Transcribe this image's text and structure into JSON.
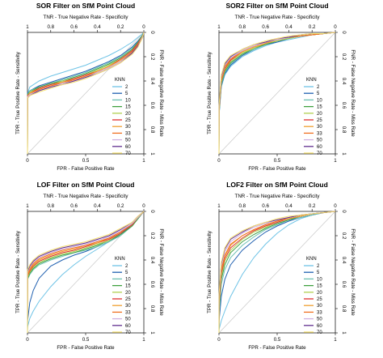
{
  "chart_data": [
    {
      "type": "line",
      "title": "SOR Filter on SfM Point Cloud",
      "xlabel": "FPR - False Positive Rate",
      "ylabel": "TPR - True Positive Rate - Sensitivity",
      "top_label": "TNR - True Negative Rate - Specificity",
      "right_label": "FNR - False Negative Rate - Miss Rate",
      "xlim": [
        0,
        1
      ],
      "ylim": [
        0,
        1
      ],
      "x_ticks": [
        "0",
        "0.5",
        "1"
      ],
      "top_ticks": [
        "1",
        "0.8",
        "0.6",
        "0.4",
        "0.2",
        "0"
      ],
      "right_ticks": [
        "0",
        "0.2",
        "0.4",
        "0.6",
        "0.8",
        "1"
      ],
      "legend_title": "KNN",
      "legend_position": "right",
      "series_x": [
        0,
        0.001,
        0.02,
        0.1,
        0.2,
        0.3,
        0.4,
        0.5,
        0.6,
        0.7,
        0.8,
        0.9,
        0.95,
        0.99,
        1
      ],
      "series": [
        {
          "name": "2",
          "color": "#6ec3e6",
          "values": [
            0,
            0.5,
            0.55,
            0.6,
            0.64,
            0.67,
            0.7,
            0.73,
            0.77,
            0.81,
            0.86,
            0.92,
            0.96,
            0.99,
            1
          ]
        },
        {
          "name": "5",
          "color": "#2060b0",
          "values": [
            0,
            0.5,
            0.52,
            0.56,
            0.59,
            0.62,
            0.65,
            0.68,
            0.72,
            0.76,
            0.81,
            0.88,
            0.93,
            0.98,
            1
          ]
        },
        {
          "name": "10",
          "color": "#6cc0b0",
          "values": [
            0,
            0.49,
            0.52,
            0.55,
            0.58,
            0.61,
            0.64,
            0.67,
            0.71,
            0.75,
            0.8,
            0.87,
            0.92,
            0.98,
            1
          ]
        },
        {
          "name": "15",
          "color": "#40a040",
          "values": [
            0,
            0.49,
            0.51,
            0.55,
            0.58,
            0.6,
            0.63,
            0.66,
            0.7,
            0.74,
            0.79,
            0.86,
            0.92,
            0.98,
            1
          ]
        },
        {
          "name": "20",
          "color": "#b0d050",
          "values": [
            0,
            0.48,
            0.51,
            0.54,
            0.57,
            0.6,
            0.62,
            0.65,
            0.69,
            0.73,
            0.78,
            0.85,
            0.91,
            0.97,
            1
          ]
        },
        {
          "name": "25",
          "color": "#e03030",
          "values": [
            0,
            0.48,
            0.5,
            0.54,
            0.57,
            0.59,
            0.62,
            0.65,
            0.68,
            0.72,
            0.78,
            0.85,
            0.91,
            0.97,
            1
          ]
        },
        {
          "name": "30",
          "color": "#f0a030",
          "values": [
            0,
            0.47,
            0.5,
            0.53,
            0.56,
            0.59,
            0.61,
            0.64,
            0.68,
            0.72,
            0.77,
            0.84,
            0.9,
            0.97,
            1
          ]
        },
        {
          "name": "33",
          "color": "#f07020",
          "values": [
            0,
            0.47,
            0.49,
            0.53,
            0.56,
            0.58,
            0.61,
            0.64,
            0.67,
            0.71,
            0.76,
            0.84,
            0.9,
            0.97,
            1
          ]
        },
        {
          "name": "50",
          "color": "#d0b0e0",
          "values": [
            0,
            0.47,
            0.49,
            0.52,
            0.55,
            0.58,
            0.6,
            0.63,
            0.67,
            0.71,
            0.76,
            0.83,
            0.89,
            0.97,
            1
          ]
        },
        {
          "name": "60",
          "color": "#603090",
          "values": [
            0,
            0.46,
            0.48,
            0.52,
            0.55,
            0.57,
            0.6,
            0.63,
            0.66,
            0.7,
            0.75,
            0.83,
            0.89,
            0.96,
            1
          ]
        },
        {
          "name": "70",
          "color": "#f5e070",
          "values": [
            0,
            0.46,
            0.48,
            0.51,
            0.54,
            0.57,
            0.59,
            0.62,
            0.66,
            0.7,
            0.75,
            0.82,
            0.88,
            0.96,
            1
          ]
        }
      ]
    },
    {
      "type": "line",
      "title": "SOR2 Filter on SfM Point Cloud",
      "xlabel": "FPR - False Positive Rate",
      "ylabel": "TPR - True Positive Rate - Sensitivity",
      "top_label": "TNR - True Negative Rate - Specificity",
      "right_label": "FNR - False Negative Rate - Miss Rate",
      "xlim": [
        0,
        1
      ],
      "ylim": [
        0,
        1
      ],
      "x_ticks": [
        "0",
        "0.5",
        "1"
      ],
      "top_ticks": [
        "1",
        "0.8",
        "0.6",
        "0.4",
        "0.2",
        "0"
      ],
      "right_ticks": [
        "0",
        "0.2",
        "0.4",
        "0.6",
        "0.8",
        "1"
      ],
      "legend_title": "KNN",
      "legend_position": "right",
      "series_x": [
        0,
        0.001,
        0.02,
        0.05,
        0.1,
        0.2,
        0.3,
        0.4,
        0.5,
        0.6,
        0.7,
        0.8,
        0.9,
        1
      ],
      "series": [
        {
          "name": "2",
          "color": "#6ec3e6",
          "values": [
            0,
            0.32,
            0.55,
            0.65,
            0.72,
            0.8,
            0.85,
            0.89,
            0.92,
            0.94,
            0.96,
            0.98,
            0.99,
            1
          ]
        },
        {
          "name": "5",
          "color": "#2060b0",
          "values": [
            0,
            0.33,
            0.56,
            0.66,
            0.73,
            0.81,
            0.86,
            0.9,
            0.92,
            0.95,
            0.97,
            0.98,
            0.99,
            1
          ]
        },
        {
          "name": "10",
          "color": "#6cc0b0",
          "values": [
            0,
            0.34,
            0.57,
            0.67,
            0.74,
            0.82,
            0.86,
            0.9,
            0.93,
            0.95,
            0.97,
            0.98,
            0.99,
            1
          ]
        },
        {
          "name": "15",
          "color": "#40a040",
          "values": [
            0,
            0.35,
            0.58,
            0.68,
            0.75,
            0.82,
            0.87,
            0.9,
            0.93,
            0.95,
            0.97,
            0.98,
            0.99,
            1
          ]
        },
        {
          "name": "20",
          "color": "#b0d050",
          "values": [
            0,
            0.35,
            0.59,
            0.69,
            0.76,
            0.83,
            0.87,
            0.91,
            0.93,
            0.95,
            0.97,
            0.98,
            0.99,
            1
          ]
        },
        {
          "name": "25",
          "color": "#e03030",
          "values": [
            0,
            0.36,
            0.6,
            0.7,
            0.77,
            0.84,
            0.88,
            0.91,
            0.94,
            0.96,
            0.97,
            0.98,
            0.99,
            1
          ]
        },
        {
          "name": "30",
          "color": "#f0a030",
          "values": [
            0,
            0.37,
            0.61,
            0.71,
            0.78,
            0.84,
            0.88,
            0.91,
            0.94,
            0.96,
            0.97,
            0.98,
            0.99,
            1
          ]
        },
        {
          "name": "33",
          "color": "#f07020",
          "values": [
            0,
            0.37,
            0.62,
            0.72,
            0.78,
            0.85,
            0.89,
            0.92,
            0.94,
            0.96,
            0.97,
            0.98,
            0.99,
            1
          ]
        },
        {
          "name": "50",
          "color": "#d0b0e0",
          "values": [
            0,
            0.38,
            0.63,
            0.73,
            0.79,
            0.85,
            0.89,
            0.92,
            0.94,
            0.96,
            0.98,
            0.99,
            0.99,
            1
          ]
        },
        {
          "name": "60",
          "color": "#603090",
          "values": [
            0,
            0.39,
            0.64,
            0.74,
            0.8,
            0.86,
            0.9,
            0.92,
            0.95,
            0.96,
            0.98,
            0.99,
            0.99,
            1
          ]
        },
        {
          "name": "70",
          "color": "#f5e070",
          "values": [
            0,
            0.4,
            0.65,
            0.75,
            0.81,
            0.86,
            0.9,
            0.93,
            0.95,
            0.97,
            0.98,
            0.99,
            0.99,
            1
          ]
        }
      ]
    },
    {
      "type": "line",
      "title": "LOF Filter on SfM Point Cloud",
      "xlabel": "FPR - False Positive Rate",
      "ylabel": "TPR - True Positive Rate - Sensitivity",
      "top_label": "TNR - True Negative Rate - Specificity",
      "right_label": "FNR - False Negative Rate - Miss Rate",
      "xlim": [
        0,
        1
      ],
      "ylim": [
        0,
        1
      ],
      "x_ticks": [
        "0",
        "0.5",
        "1"
      ],
      "top_ticks": [
        "1",
        "0.8",
        "0.6",
        "0.4",
        "0.2",
        "0"
      ],
      "right_ticks": [
        "0",
        "0.2",
        "0.4",
        "0.6",
        "0.8",
        "1"
      ],
      "legend_title": "KNN",
      "legend_position": "right",
      "series_x": [
        0,
        0.001,
        0.02,
        0.05,
        0.1,
        0.2,
        0.3,
        0.4,
        0.5,
        0.6,
        0.7,
        0.8,
        0.9,
        0.95,
        1
      ],
      "series": [
        {
          "name": "2",
          "color": "#6ec3e6",
          "values": [
            0,
            0.05,
            0.12,
            0.18,
            0.26,
            0.38,
            0.48,
            0.56,
            0.63,
            0.69,
            0.75,
            0.82,
            0.9,
            0.95,
            1
          ]
        },
        {
          "name": "5",
          "color": "#2060b0",
          "values": [
            0,
            0.1,
            0.25,
            0.35,
            0.45,
            0.55,
            0.6,
            0.64,
            0.67,
            0.71,
            0.75,
            0.81,
            0.89,
            0.94,
            1
          ]
        },
        {
          "name": "10",
          "color": "#6cc0b0",
          "values": [
            0,
            0.44,
            0.48,
            0.52,
            0.56,
            0.6,
            0.63,
            0.66,
            0.68,
            0.71,
            0.75,
            0.8,
            0.88,
            0.94,
            1
          ]
        },
        {
          "name": "15",
          "color": "#40a040",
          "values": [
            0,
            0.45,
            0.49,
            0.53,
            0.57,
            0.61,
            0.64,
            0.66,
            0.69,
            0.72,
            0.76,
            0.81,
            0.88,
            0.94,
            1
          ]
        },
        {
          "name": "20",
          "color": "#b0d050",
          "values": [
            0,
            0.46,
            0.5,
            0.54,
            0.58,
            0.62,
            0.65,
            0.67,
            0.7,
            0.73,
            0.76,
            0.82,
            0.89,
            0.95,
            1
          ]
        },
        {
          "name": "25",
          "color": "#e03030",
          "values": [
            0,
            0.47,
            0.51,
            0.55,
            0.59,
            0.63,
            0.66,
            0.68,
            0.71,
            0.74,
            0.77,
            0.82,
            0.89,
            0.95,
            1
          ]
        },
        {
          "name": "30",
          "color": "#f0a030",
          "values": [
            0,
            0.48,
            0.52,
            0.56,
            0.6,
            0.64,
            0.67,
            0.69,
            0.72,
            0.74,
            0.78,
            0.83,
            0.9,
            0.95,
            1
          ]
        },
        {
          "name": "33",
          "color": "#f07020",
          "values": [
            0,
            0.49,
            0.53,
            0.57,
            0.61,
            0.65,
            0.68,
            0.7,
            0.72,
            0.75,
            0.78,
            0.83,
            0.9,
            0.95,
            1
          ]
        },
        {
          "name": "50",
          "color": "#d0b0e0",
          "values": [
            0,
            0.5,
            0.54,
            0.58,
            0.62,
            0.66,
            0.69,
            0.71,
            0.73,
            0.76,
            0.79,
            0.84,
            0.9,
            0.95,
            1
          ]
        },
        {
          "name": "60",
          "color": "#603090",
          "values": [
            0,
            0.51,
            0.55,
            0.59,
            0.63,
            0.67,
            0.7,
            0.72,
            0.74,
            0.77,
            0.8,
            0.85,
            0.91,
            0.96,
            1
          ]
        },
        {
          "name": "70",
          "color": "#f5e070",
          "values": [
            0,
            0.52,
            0.56,
            0.6,
            0.64,
            0.68,
            0.71,
            0.73,
            0.75,
            0.78,
            0.81,
            0.86,
            0.91,
            0.96,
            1
          ]
        }
      ]
    },
    {
      "type": "line",
      "title": "LOF2 Filter on SfM Point Cloud",
      "xlabel": "FPR - False Positive Rate",
      "ylabel": "TPR - True Positive Rate - Sensitivity",
      "top_label": "TNR - True Negative Rate - Specificity",
      "right_label": "FNR - False Negative Rate - Miss Rate",
      "xlim": [
        0,
        1
      ],
      "ylim": [
        0,
        1
      ],
      "x_ticks": [
        "0",
        "0.5",
        "1"
      ],
      "top_ticks": [
        "1",
        "0.8",
        "0.6",
        "0.4",
        "0.2",
        "0"
      ],
      "right_ticks": [
        "0",
        "0.2",
        "0.4",
        "0.6",
        "0.8",
        "1"
      ],
      "legend_title": "KNN",
      "legend_position": "right",
      "series_x": [
        0,
        0.001,
        0.02,
        0.05,
        0.1,
        0.2,
        0.3,
        0.4,
        0.5,
        0.6,
        0.7,
        0.8,
        0.9,
        1
      ],
      "series": [
        {
          "name": "2",
          "color": "#6ec3e6",
          "values": [
            0,
            0.03,
            0.1,
            0.18,
            0.3,
            0.48,
            0.62,
            0.73,
            0.82,
            0.89,
            0.94,
            0.97,
            0.99,
            1
          ]
        },
        {
          "name": "5",
          "color": "#2060b0",
          "values": [
            0,
            0.1,
            0.3,
            0.44,
            0.56,
            0.68,
            0.76,
            0.83,
            0.88,
            0.92,
            0.95,
            0.97,
            0.99,
            1
          ]
        },
        {
          "name": "10",
          "color": "#6cc0b0",
          "values": [
            0,
            0.15,
            0.4,
            0.52,
            0.62,
            0.72,
            0.79,
            0.85,
            0.89,
            0.93,
            0.95,
            0.97,
            0.99,
            1
          ]
        },
        {
          "name": "15",
          "color": "#40a040",
          "values": [
            0,
            0.2,
            0.44,
            0.56,
            0.66,
            0.75,
            0.81,
            0.86,
            0.9,
            0.93,
            0.96,
            0.98,
            0.99,
            1
          ]
        },
        {
          "name": "20",
          "color": "#b0d050",
          "values": [
            0,
            0.22,
            0.47,
            0.59,
            0.68,
            0.77,
            0.83,
            0.87,
            0.91,
            0.94,
            0.96,
            0.98,
            0.99,
            1
          ]
        },
        {
          "name": "25",
          "color": "#e03030",
          "values": [
            0,
            0.24,
            0.49,
            0.61,
            0.7,
            0.78,
            0.84,
            0.88,
            0.91,
            0.94,
            0.96,
            0.98,
            0.99,
            1
          ]
        },
        {
          "name": "30",
          "color": "#f0a030",
          "values": [
            0,
            0.26,
            0.51,
            0.63,
            0.72,
            0.8,
            0.85,
            0.89,
            0.92,
            0.94,
            0.96,
            0.98,
            0.99,
            1
          ]
        },
        {
          "name": "33",
          "color": "#f07020",
          "values": [
            0,
            0.27,
            0.52,
            0.64,
            0.73,
            0.8,
            0.85,
            0.89,
            0.92,
            0.95,
            0.97,
            0.98,
            0.99,
            1
          ]
        },
        {
          "name": "50",
          "color": "#d0b0e0",
          "values": [
            0,
            0.29,
            0.55,
            0.67,
            0.75,
            0.82,
            0.87,
            0.9,
            0.93,
            0.95,
            0.97,
            0.98,
            0.99,
            1
          ]
        },
        {
          "name": "60",
          "color": "#603090",
          "values": [
            0,
            0.3,
            0.57,
            0.69,
            0.77,
            0.83,
            0.88,
            0.91,
            0.93,
            0.95,
            0.97,
            0.98,
            0.99,
            1
          ]
        },
        {
          "name": "70",
          "color": "#f5e070",
          "values": [
            0,
            0.32,
            0.58,
            0.7,
            0.78,
            0.84,
            0.88,
            0.91,
            0.94,
            0.96,
            0.97,
            0.98,
            0.99,
            1
          ]
        }
      ]
    }
  ]
}
